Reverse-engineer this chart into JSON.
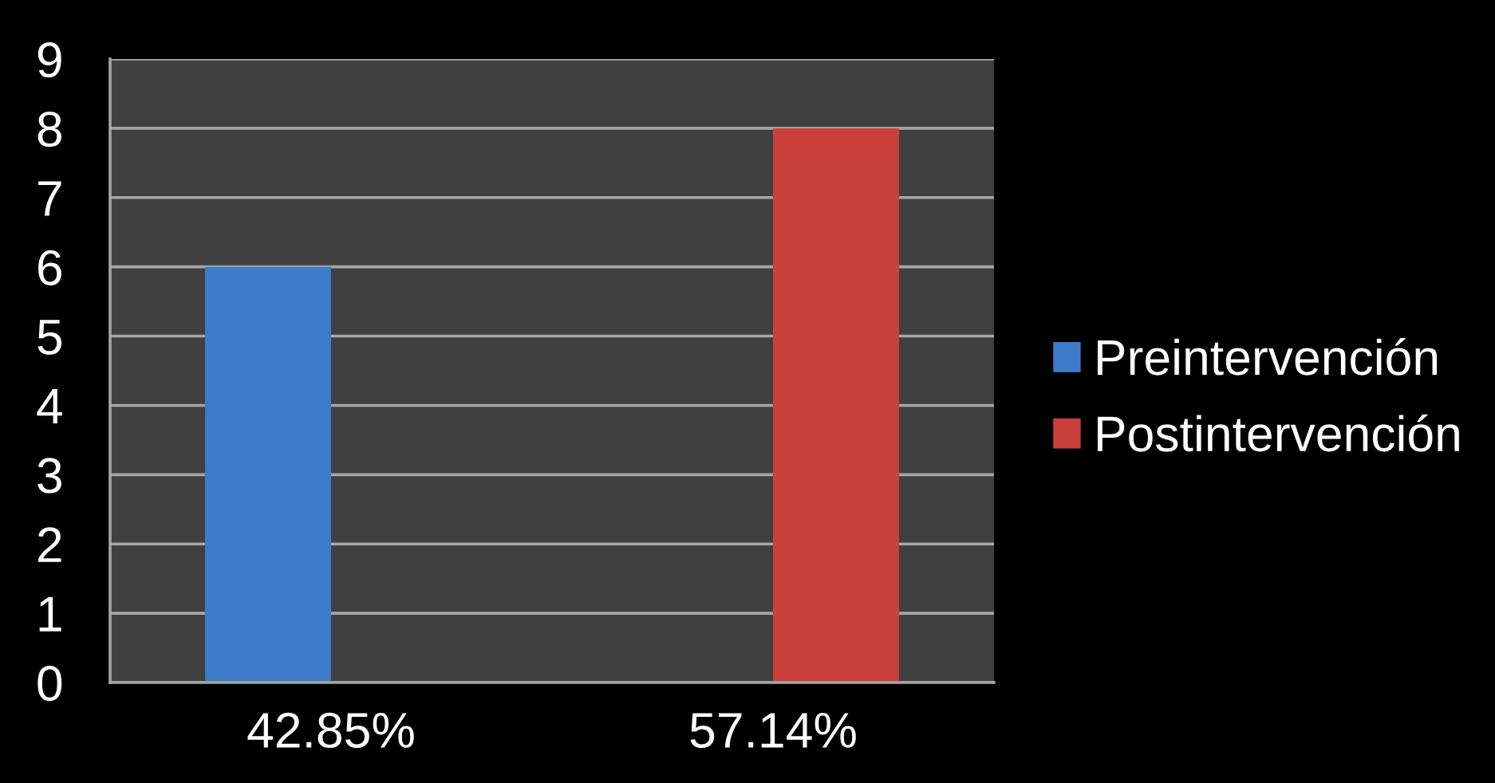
{
  "chart_data": {
    "type": "bar",
    "categories": [
      "42.85%",
      "57.14%"
    ],
    "series": [
      {
        "name": "Preintervención",
        "color": "#3e7cc9",
        "values": [
          6,
          null
        ]
      },
      {
        "name": "Postintervención",
        "color": "#c9403d",
        "values": [
          null,
          8
        ]
      }
    ],
    "ylim": [
      0,
      9
    ],
    "yticks": [
      0,
      1,
      2,
      3,
      4,
      5,
      6,
      7,
      8,
      9
    ],
    "grid": "y",
    "legend": "right"
  }
}
